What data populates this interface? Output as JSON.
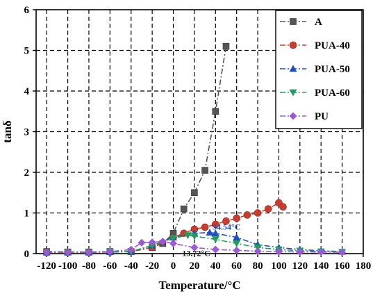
{
  "chart_data": {
    "type": "line",
    "xlabel": "Temperature/°C",
    "ylabel": "tanδ",
    "xlim": [
      -130,
      180
    ],
    "ylim": [
      0,
      6
    ],
    "xticks": [
      -120,
      -100,
      -80,
      -60,
      -40,
      -20,
      0,
      20,
      40,
      60,
      80,
      100,
      120,
      140,
      160,
      180
    ],
    "yticks": [
      0,
      1,
      2,
      3,
      4,
      5,
      6
    ],
    "grid": true,
    "legend_position": "top-right",
    "series": [
      {
        "name": "A",
        "color": "#555555",
        "marker": "square",
        "x": [
          -120,
          -100,
          -80,
          -60,
          -40,
          -20,
          -10,
          0,
          10,
          20,
          30,
          40,
          50
        ],
        "y": [
          0.05,
          0.04,
          0.04,
          0.05,
          0.05,
          0.15,
          0.25,
          0.5,
          1.1,
          1.5,
          2.05,
          3.5,
          5.1
        ]
      },
      {
        "name": "PUA-40",
        "color": "#cc3b2b",
        "marker": "circle",
        "x": [
          -120,
          -100,
          -80,
          -60,
          -40,
          -20,
          0,
          10,
          20,
          30,
          40,
          50,
          60,
          70,
          80,
          90,
          100,
          104
        ],
        "y": [
          0.03,
          0.03,
          0.03,
          0.04,
          0.05,
          0.15,
          0.4,
          0.5,
          0.6,
          0.65,
          0.72,
          0.8,
          0.87,
          0.95,
          1.0,
          1.1,
          1.25,
          1.15
        ]
      },
      {
        "name": "PUA-50",
        "color": "#1f4ec9",
        "marker": "triangle-up",
        "x": [
          -120,
          -100,
          -80,
          -60,
          -40,
          -20,
          0,
          20,
          34.54,
          40,
          60,
          80,
          100,
          120,
          140,
          160
        ],
        "y": [
          0.03,
          0.03,
          0.03,
          0.04,
          0.05,
          0.2,
          0.4,
          0.5,
          0.52,
          0.5,
          0.4,
          0.22,
          0.15,
          0.1,
          0.07,
          0.05
        ]
      },
      {
        "name": "PUA-60",
        "color": "#1e9e5a",
        "marker": "triangle-down",
        "x": [
          -120,
          -100,
          -80,
          -60,
          -40,
          -20,
          0,
          13.72,
          20,
          40,
          60,
          80,
          100,
          120,
          140,
          160
        ],
        "y": [
          0.03,
          0.03,
          0.03,
          0.04,
          0.05,
          0.2,
          0.38,
          0.45,
          0.43,
          0.35,
          0.25,
          0.15,
          0.1,
          0.07,
          0.05,
          0.04
        ]
      },
      {
        "name": "PU",
        "color": "#9b59d6",
        "marker": "diamond",
        "x": [
          -120,
          -100,
          -80,
          -60,
          -40,
          -30,
          -20,
          -10,
          0,
          20,
          40,
          60,
          80,
          100,
          120,
          140,
          160
        ],
        "y": [
          0.03,
          0.03,
          0.03,
          0.05,
          0.1,
          0.27,
          0.28,
          0.3,
          0.25,
          0.15,
          0.1,
          0.08,
          0.06,
          0.05,
          0.04,
          0.04,
          0.03
        ]
      }
    ],
    "annotations": [
      {
        "text": "34.54°C",
        "x": 34.54,
        "y": 0.52,
        "color": "#1f4ec9"
      },
      {
        "text": "13.72°C",
        "x": 13.72,
        "y": 0.45,
        "color": "#1a1a1a"
      }
    ]
  }
}
